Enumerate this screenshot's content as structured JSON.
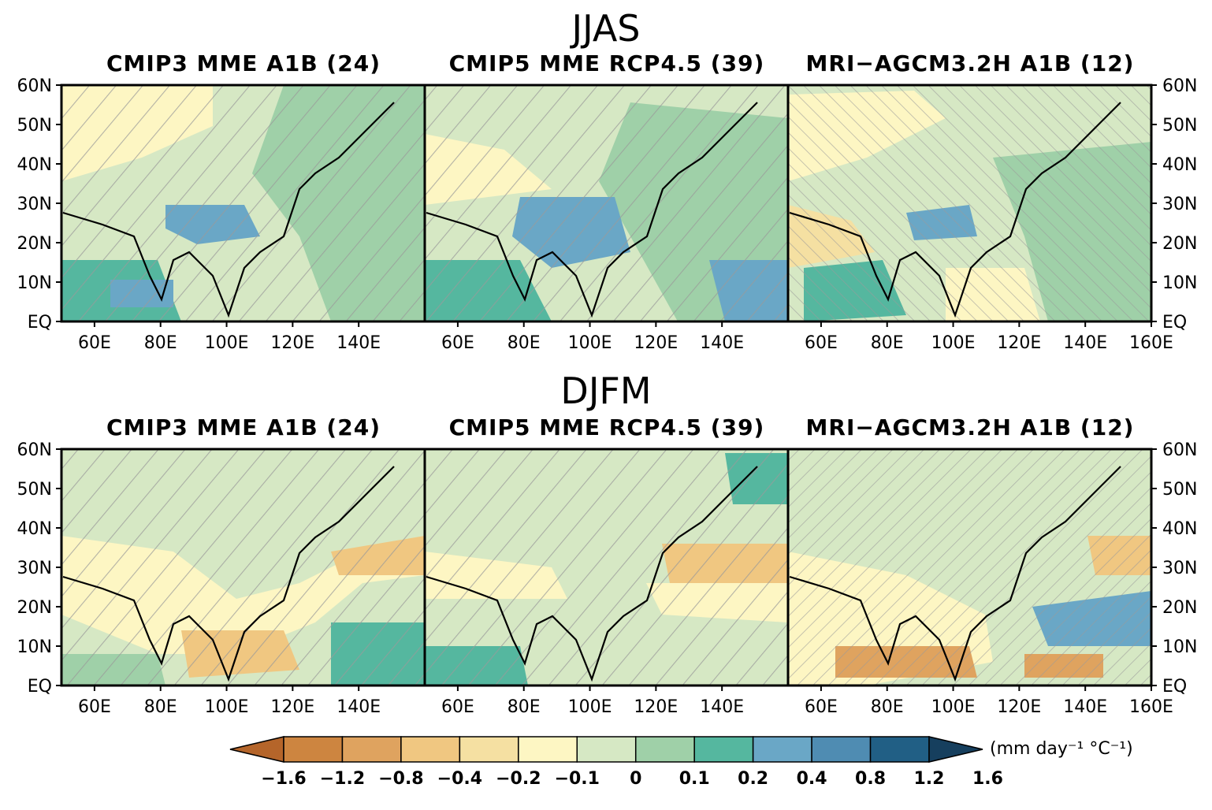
{
  "figure": {
    "rows": [
      {
        "season": "JJAS",
        "panels": [
          "CMIP3 MME A1B (24)",
          "CMIP5 MME RCP4.5 (39)",
          "MRI−AGCM3.2H A1B (12)"
        ]
      },
      {
        "season": "DJFM",
        "panels": [
          "CMIP3 MME A1B (24)",
          "CMIP5 MME RCP4.5 (39)",
          "MRI−AGCM3.2H A1B (12)"
        ]
      }
    ]
  },
  "chart_data": {
    "type": "heatmap",
    "x_ticks": [
      "60E",
      "80E",
      "100E",
      "120E",
      "140E",
      "160E"
    ],
    "x_ticks_values": [
      60,
      80,
      100,
      120,
      140,
      160
    ],
    "y_ticks": [
      "EQ",
      "10N",
      "20N",
      "30N",
      "40N",
      "50N",
      "60N"
    ],
    "y_ticks_values": [
      0,
      10,
      20,
      30,
      40,
      50,
      60
    ],
    "xlim": [
      50,
      160
    ],
    "ylim": [
      0,
      60
    ],
    "colorbar": {
      "levels": [
        "−1.6",
        "−1.2",
        "−0.8",
        "−0.4",
        "−0.2",
        "−0.1",
        "0",
        "0.1",
        "0.2",
        "0.4",
        "0.8",
        "1.2",
        "1.6"
      ],
      "colors": [
        "#b5652a",
        "#cd8540",
        "#dfa35f",
        "#f0c781",
        "#f5e0a2",
        "#fdf6c3",
        "#d6e8c4",
        "#9fd0a8",
        "#55b79f",
        "#6aa7c6",
        "#4f8cb2",
        "#215f85",
        "#163f5e"
      ],
      "unit": "(mm day⁻¹ °C⁻¹)"
    },
    "hatching": "gray diagonal hatching marks areas of model agreement"
  }
}
